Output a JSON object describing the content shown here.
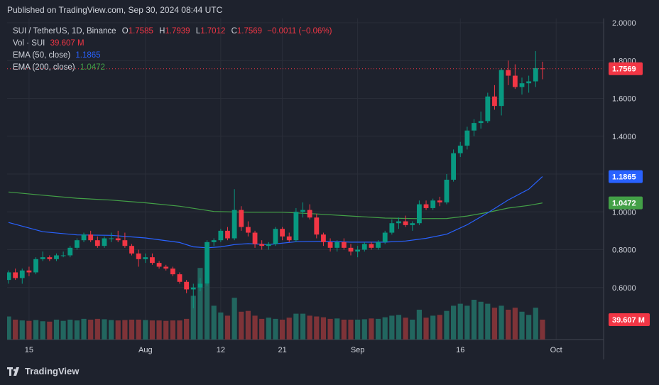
{
  "header": {
    "published": "Published on TradingView.com, Sep 30, 2024 08:44 UTC"
  },
  "legend": {
    "symbol": "SUI / TetherUS, 1D, Binance",
    "open_key": "O",
    "open": "1.7585",
    "high_key": "H",
    "high": "1.7939",
    "low_key": "L",
    "low": "1.7012",
    "close_key": "C",
    "close": "1.7569",
    "change": "−0.0011 (−0.06%)",
    "vol_label": "Vol · SUI",
    "vol_value": "39.607 M",
    "ema50_label": "EMA (50, close)",
    "ema50_value": "1.1865",
    "ema200_label": "EMA (200, close)",
    "ema200_value": "1.0472"
  },
  "colors": {
    "background": "#1e222d",
    "grid": "#2a2e39",
    "up": "#089981",
    "down": "#f23645",
    "up_volume": "#22665f",
    "down_volume": "#7e3338",
    "ema50": "#2962ff",
    "ema200": "#43a047",
    "text": "#d1d4dc"
  },
  "footer": {
    "brand": "TradingView",
    "logo": "tradingview-logo-icon"
  },
  "chart_data": {
    "type": "candlestick",
    "y_ticks": [
      "2.0000",
      "1.8000",
      "1.6000",
      "1.4000",
      "1.2000",
      "1.0000",
      "0.8000",
      "0.6000"
    ],
    "ylim": [
      0.4,
      2.0
    ],
    "x_ticks": [
      {
        "label": "15",
        "day": 3
      },
      {
        "label": "Aug",
        "day": 20
      },
      {
        "label": "12",
        "day": 31
      },
      {
        "label": "21",
        "day": 40
      },
      {
        "label": "Sep",
        "day": 51
      },
      {
        "label": "16",
        "day": 66
      },
      {
        "label": "Oct",
        "day": 80
      }
    ],
    "price_labels": [
      {
        "value": "1.7569",
        "kind": "price"
      },
      {
        "value": "1.1865",
        "kind": "ema50"
      },
      {
        "value": "1.0472",
        "kind": "ema200"
      },
      {
        "value": "39.607 M",
        "kind": "volume"
      }
    ],
    "candles": [
      [
        0.64,
        0.69,
        0.62,
        0.68
      ],
      [
        0.68,
        0.7,
        0.64,
        0.65
      ],
      [
        0.65,
        0.7,
        0.62,
        0.69
      ],
      [
        0.69,
        0.71,
        0.66,
        0.68
      ],
      [
        0.68,
        0.76,
        0.67,
        0.75
      ],
      [
        0.75,
        0.79,
        0.74,
        0.76
      ],
      [
        0.76,
        0.77,
        0.74,
        0.75
      ],
      [
        0.75,
        0.78,
        0.74,
        0.77
      ],
      [
        0.77,
        0.79,
        0.76,
        0.77
      ],
      [
        0.77,
        0.82,
        0.76,
        0.81
      ],
      [
        0.81,
        0.86,
        0.8,
        0.85
      ],
      [
        0.85,
        0.89,
        0.84,
        0.88
      ],
      [
        0.88,
        0.9,
        0.84,
        0.85
      ],
      [
        0.85,
        0.87,
        0.81,
        0.82
      ],
      [
        0.82,
        0.87,
        0.81,
        0.86
      ],
      [
        0.86,
        0.89,
        0.84,
        0.86
      ],
      [
        0.86,
        0.9,
        0.84,
        0.85
      ],
      [
        0.85,
        0.89,
        0.81,
        0.82
      ],
      [
        0.82,
        0.83,
        0.77,
        0.78
      ],
      [
        0.78,
        0.8,
        0.71,
        0.75
      ],
      [
        0.75,
        0.78,
        0.73,
        0.76
      ],
      [
        0.76,
        0.78,
        0.72,
        0.73
      ],
      [
        0.73,
        0.74,
        0.7,
        0.71
      ],
      [
        0.71,
        0.72,
        0.69,
        0.7
      ],
      [
        0.7,
        0.71,
        0.66,
        0.67
      ],
      [
        0.67,
        0.68,
        0.62,
        0.63
      ],
      [
        0.63,
        0.64,
        0.57,
        0.59
      ],
      [
        0.59,
        0.62,
        0.49,
        0.6
      ],
      [
        0.6,
        0.65,
        0.58,
        0.62
      ],
      [
        0.62,
        0.85,
        0.61,
        0.84
      ],
      [
        0.84,
        0.86,
        0.82,
        0.85
      ],
      [
        0.85,
        0.91,
        0.84,
        0.9
      ],
      [
        0.9,
        0.92,
        0.85,
        0.86
      ],
      [
        0.86,
        1.12,
        0.85,
        1.01
      ],
      [
        1.01,
        1.03,
        0.9,
        0.92
      ],
      [
        0.92,
        0.95,
        0.87,
        0.89
      ],
      [
        0.89,
        0.9,
        0.81,
        0.83
      ],
      [
        0.83,
        0.85,
        0.8,
        0.82
      ],
      [
        0.82,
        0.84,
        0.8,
        0.83
      ],
      [
        0.83,
        0.92,
        0.82,
        0.91
      ],
      [
        0.91,
        0.92,
        0.85,
        0.87
      ],
      [
        0.87,
        0.89,
        0.84,
        0.85
      ],
      [
        0.85,
        1.02,
        0.84,
        1.0
      ],
      [
        1.0,
        1.05,
        0.97,
        1.01
      ],
      [
        1.01,
        1.04,
        0.96,
        0.97
      ],
      [
        0.97,
        0.99,
        0.86,
        0.88
      ],
      [
        0.88,
        0.89,
        0.82,
        0.84
      ],
      [
        0.84,
        0.86,
        0.79,
        0.81
      ],
      [
        0.81,
        0.85,
        0.79,
        0.84
      ],
      [
        0.84,
        0.86,
        0.8,
        0.81
      ],
      [
        0.81,
        0.83,
        0.77,
        0.79
      ],
      [
        0.79,
        0.82,
        0.76,
        0.8
      ],
      [
        0.8,
        0.84,
        0.79,
        0.83
      ],
      [
        0.83,
        0.84,
        0.8,
        0.81
      ],
      [
        0.81,
        0.85,
        0.8,
        0.84
      ],
      [
        0.84,
        0.9,
        0.83,
        0.89
      ],
      [
        0.89,
        0.96,
        0.88,
        0.94
      ],
      [
        0.94,
        0.97,
        0.91,
        0.95
      ],
      [
        0.95,
        0.98,
        0.92,
        0.93
      ],
      [
        0.93,
        0.95,
        0.9,
        0.94
      ],
      [
        0.94,
        1.06,
        0.93,
        1.04
      ],
      [
        1.04,
        1.06,
        1.01,
        1.02
      ],
      [
        1.02,
        1.07,
        1.01,
        1.06
      ],
      [
        1.06,
        1.08,
        1.03,
        1.05
      ],
      [
        1.05,
        1.2,
        1.04,
        1.17
      ],
      [
        1.17,
        1.33,
        1.16,
        1.31
      ],
      [
        1.31,
        1.37,
        1.29,
        1.35
      ],
      [
        1.35,
        1.45,
        1.33,
        1.43
      ],
      [
        1.43,
        1.49,
        1.4,
        1.47
      ],
      [
        1.47,
        1.53,
        1.44,
        1.48
      ],
      [
        1.48,
        1.63,
        1.47,
        1.61
      ],
      [
        1.61,
        1.67,
        1.54,
        1.56
      ],
      [
        1.56,
        1.76,
        1.51,
        1.75
      ],
      [
        1.75,
        1.8,
        1.67,
        1.72
      ],
      [
        1.72,
        1.78,
        1.65,
        1.66
      ],
      [
        1.66,
        1.71,
        1.62,
        1.68
      ],
      [
        1.68,
        1.72,
        1.63,
        1.69
      ],
      [
        1.69,
        1.85,
        1.66,
        1.76
      ],
      [
        1.7585,
        1.7939,
        1.7012,
        1.7569
      ]
    ],
    "volume": [
      0.58,
      0.5,
      0.48,
      0.47,
      0.49,
      0.46,
      0.45,
      0.5,
      0.47,
      0.5,
      0.48,
      0.52,
      0.5,
      0.52,
      0.51,
      0.49,
      0.48,
      0.49,
      0.5,
      0.5,
      0.49,
      0.48,
      0.48,
      0.47,
      0.48,
      0.48,
      0.52,
      1.1,
      1.8,
      1.4,
      0.85,
      0.68,
      0.6,
      1.05,
      0.7,
      0.72,
      0.6,
      0.52,
      0.55,
      0.52,
      0.5,
      0.55,
      0.65,
      0.65,
      0.6,
      0.58,
      0.56,
      0.52,
      0.53,
      0.5,
      0.5,
      0.5,
      0.51,
      0.53,
      0.52,
      0.56,
      0.6,
      0.62,
      0.55,
      0.5,
      0.75,
      0.55,
      0.6,
      0.62,
      0.72,
      0.85,
      0.9,
      0.85,
      1.0,
      0.95,
      0.9,
      0.8,
      0.85,
      0.75,
      0.8,
      0.7,
      0.62,
      0.8,
      0.5
    ],
    "ema50": [
      [
        0,
        0.944
      ],
      [
        5,
        0.895
      ],
      [
        10,
        0.878
      ],
      [
        15,
        0.876
      ],
      [
        20,
        0.862
      ],
      [
        25,
        0.838
      ],
      [
        27,
        0.815
      ],
      [
        29,
        0.81
      ],
      [
        31,
        0.815
      ],
      [
        33,
        0.827
      ],
      [
        35,
        0.832
      ],
      [
        38,
        0.827
      ],
      [
        42,
        0.842
      ],
      [
        46,
        0.845
      ],
      [
        50,
        0.84
      ],
      [
        55,
        0.84
      ],
      [
        58,
        0.846
      ],
      [
        61,
        0.86
      ],
      [
        64,
        0.882
      ],
      [
        67,
        0.932
      ],
      [
        70,
        0.995
      ],
      [
        73,
        1.063
      ],
      [
        76,
        1.12
      ],
      [
        78,
        1.1865
      ]
    ],
    "ema200": [
      [
        0,
        1.105
      ],
      [
        5,
        1.088
      ],
      [
        10,
        1.072
      ],
      [
        15,
        1.062
      ],
      [
        20,
        1.048
      ],
      [
        25,
        1.03
      ],
      [
        30,
        1.002
      ],
      [
        35,
        0.998
      ],
      [
        40,
        0.998
      ],
      [
        45,
        0.989
      ],
      [
        50,
        0.978
      ],
      [
        55,
        0.967
      ],
      [
        60,
        0.964
      ],
      [
        64,
        0.965
      ],
      [
        67,
        0.978
      ],
      [
        70,
        0.997
      ],
      [
        73,
        1.02
      ],
      [
        76,
        1.034
      ],
      [
        78,
        1.0472
      ]
    ]
  }
}
